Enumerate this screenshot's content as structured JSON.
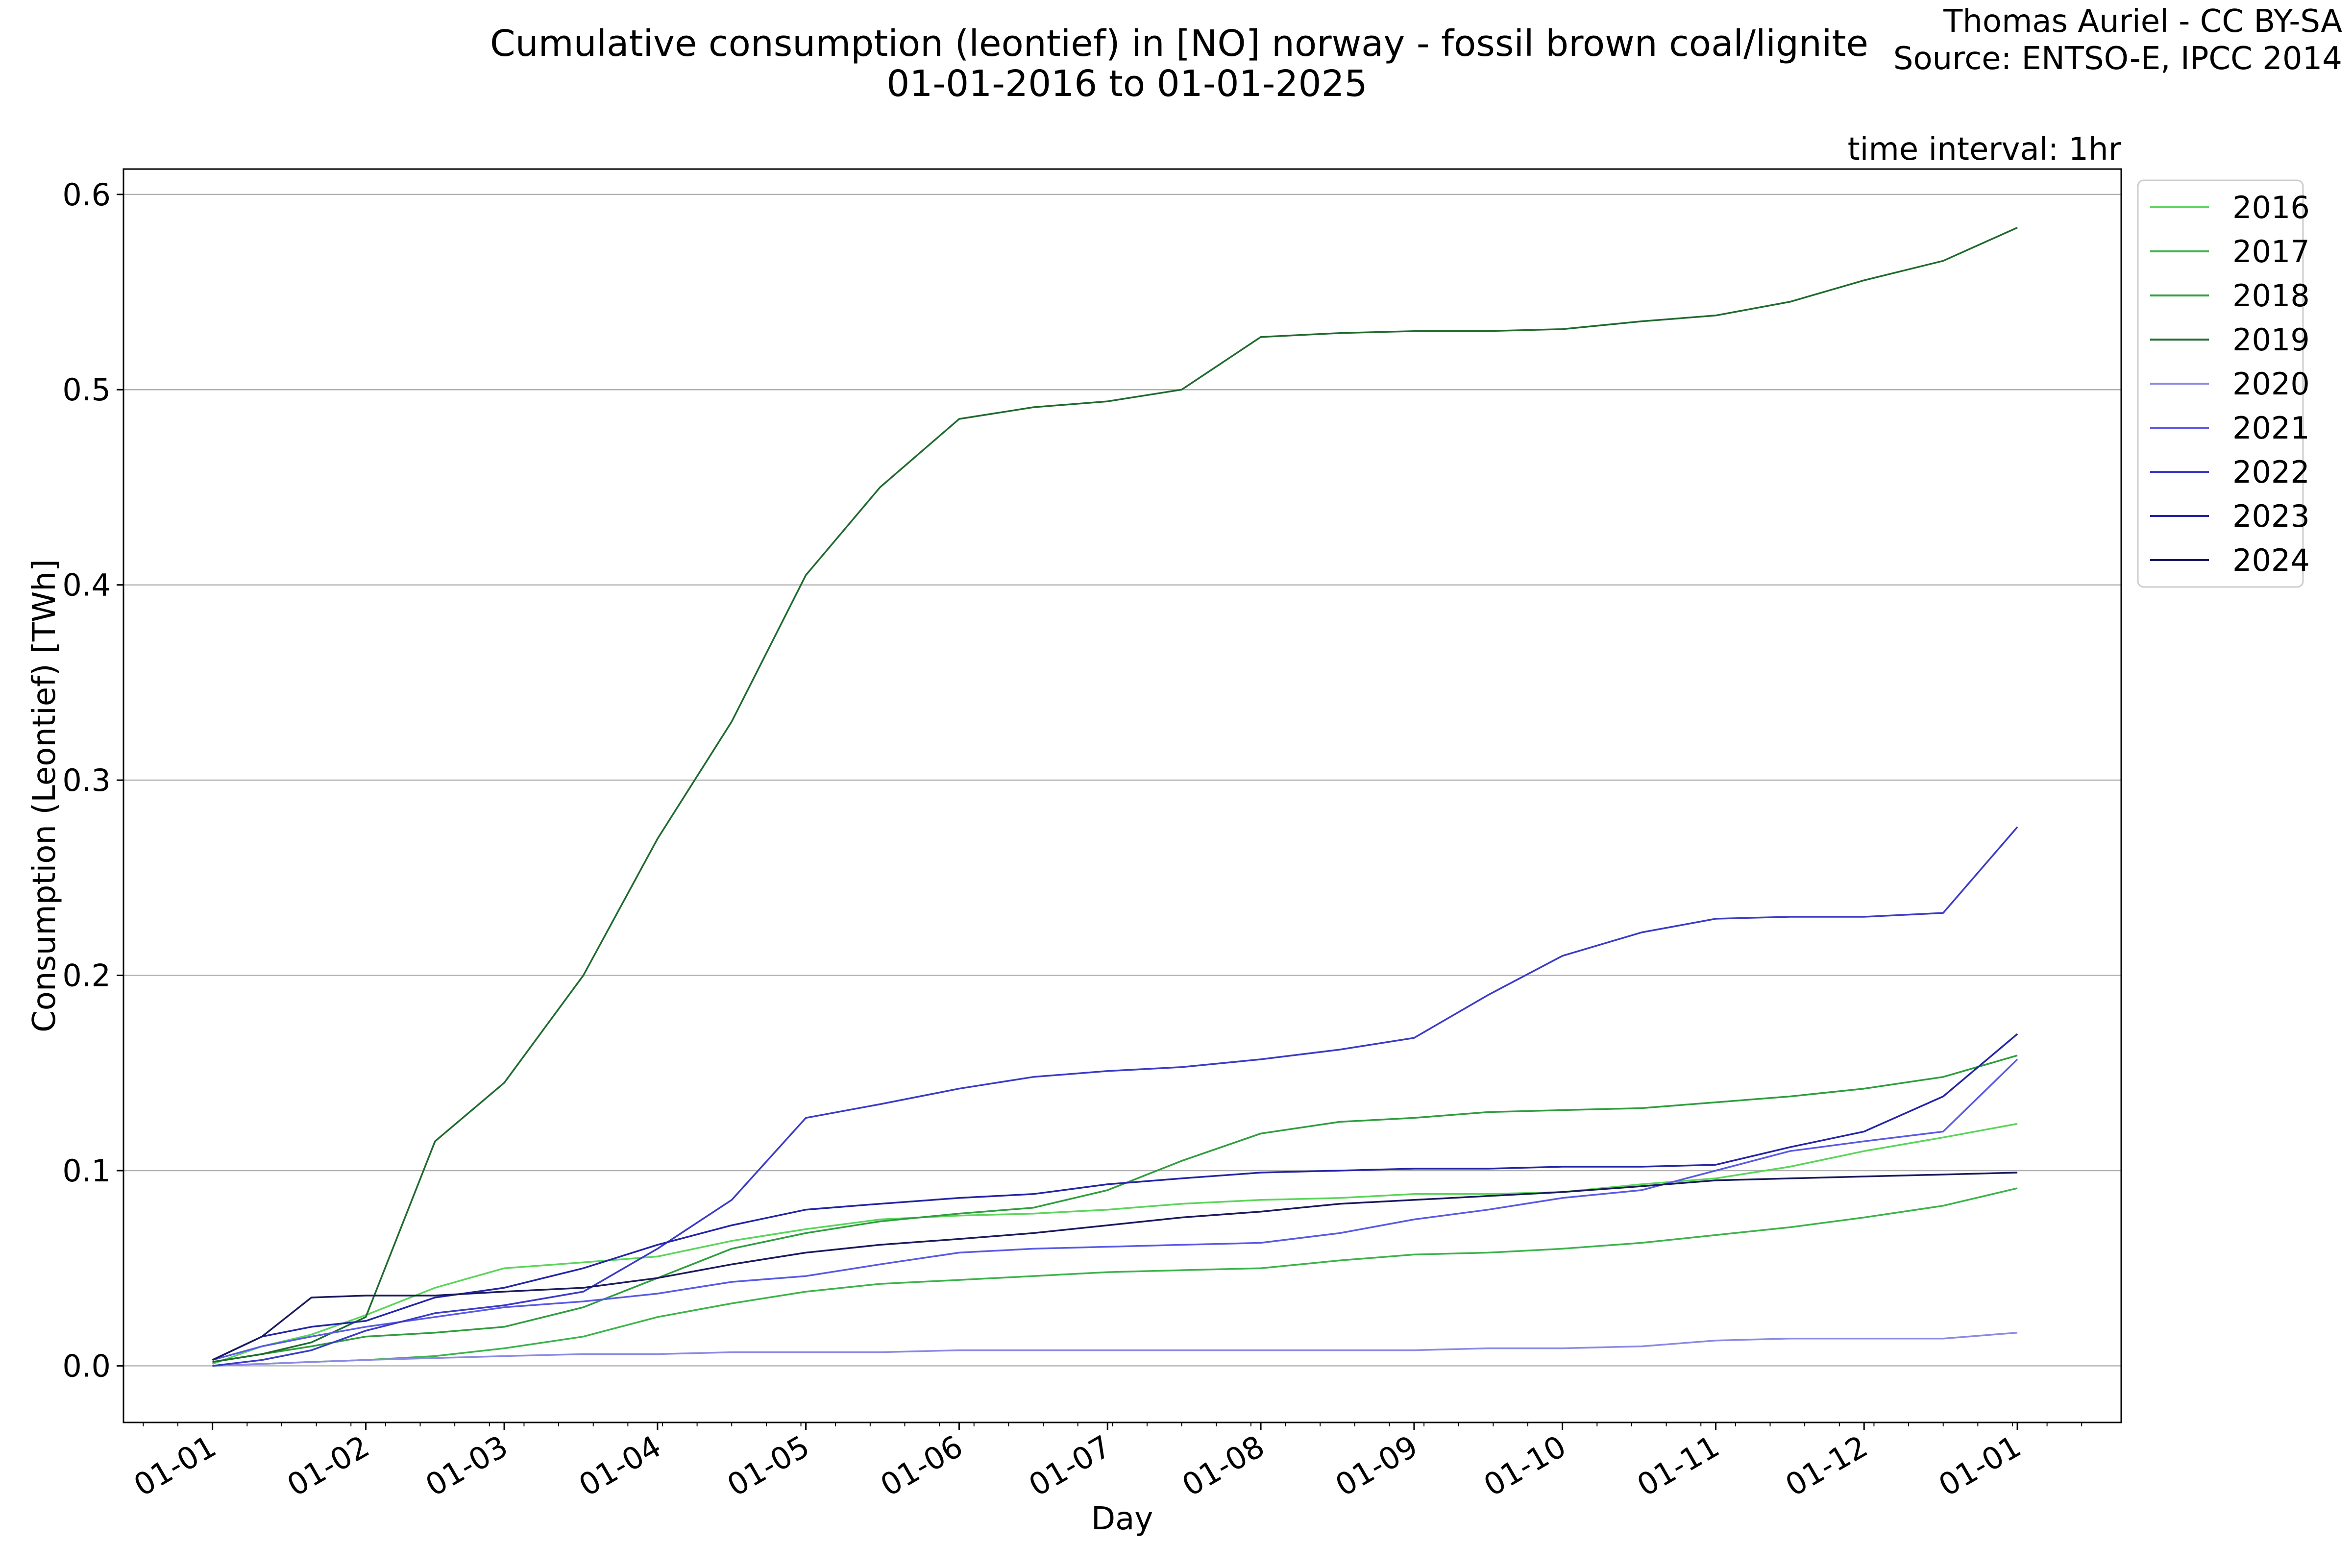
{
  "chart_data": {
    "type": "line",
    "title": "Cumulative consumption (leontief) in [NO] norway - fossil brown coal/lignite",
    "subtitle": "01-01-2016 to 01-01-2025",
    "credit": [
      "Thomas Auriel - CC BY-SA",
      "Source: ENTSO-E, IPCC 2014"
    ],
    "annotation": "time interval: 1hr",
    "xlabel": "Day",
    "ylabel": "Consumption (Leontief) [TWh]",
    "x_ticks": [
      "01-01",
      "01-02",
      "01-03",
      "01-04",
      "01-05",
      "01-06",
      "01-07",
      "01-08",
      "01-09",
      "01-10",
      "01-11",
      "01-12",
      "01-01"
    ],
    "x_tick_days": [
      0,
      31,
      59,
      90,
      120,
      151,
      181,
      212,
      243,
      273,
      304,
      334,
      365
    ],
    "y_ticks": [
      0.0,
      0.1,
      0.2,
      0.3,
      0.4,
      0.5,
      0.6
    ],
    "y_tick_labels": [
      "0.0",
      "0.1",
      "0.2",
      "0.3",
      "0.4",
      "0.5",
      "0.6"
    ],
    "xlim": [
      -18,
      386
    ],
    "ylim": [
      -0.029,
      0.613
    ],
    "grid": "horizontal",
    "legend_position": "outside-top-right",
    "x": [
      0,
      10,
      20,
      31,
      45,
      59,
      75,
      90,
      105,
      120,
      135,
      151,
      166,
      181,
      196,
      212,
      228,
      243,
      258,
      273,
      289,
      304,
      319,
      334,
      350,
      365
    ],
    "series": [
      {
        "name": "2016",
        "color": "#5ad65a",
        "values": [
          0.001,
          0.01,
          0.016,
          0.026,
          0.04,
          0.05,
          0.053,
          0.056,
          0.064,
          0.07,
          0.075,
          0.077,
          0.078,
          0.08,
          0.083,
          0.085,
          0.086,
          0.088,
          0.088,
          0.089,
          0.093,
          0.096,
          0.102,
          0.11,
          0.117,
          0.124
        ]
      },
      {
        "name": "2017",
        "color": "#3cb44b",
        "values": [
          0.0,
          0.001,
          0.002,
          0.003,
          0.005,
          0.009,
          0.015,
          0.025,
          0.032,
          0.038,
          0.042,
          0.044,
          0.046,
          0.048,
          0.049,
          0.05,
          0.054,
          0.057,
          0.058,
          0.06,
          0.063,
          0.067,
          0.071,
          0.076,
          0.082,
          0.091
        ]
      },
      {
        "name": "2018",
        "color": "#2e9e3e",
        "values": [
          0.002,
          0.006,
          0.01,
          0.015,
          0.017,
          0.02,
          0.03,
          0.045,
          0.06,
          0.068,
          0.074,
          0.078,
          0.081,
          0.09,
          0.105,
          0.119,
          0.125,
          0.127,
          0.13,
          0.131,
          0.132,
          0.135,
          0.138,
          0.142,
          0.148,
          0.159
        ]
      },
      {
        "name": "2019",
        "color": "#1f6b2e",
        "values": [
          0.002,
          0.006,
          0.012,
          0.025,
          0.115,
          0.145,
          0.2,
          0.27,
          0.33,
          0.405,
          0.45,
          0.485,
          0.491,
          0.494,
          0.5,
          0.527,
          0.529,
          0.53,
          0.53,
          0.531,
          0.535,
          0.538,
          0.545,
          0.556,
          0.566,
          0.583
        ]
      },
      {
        "name": "2020",
        "color": "#8a8ae6",
        "values": [
          0.0,
          0.001,
          0.002,
          0.003,
          0.004,
          0.005,
          0.006,
          0.006,
          0.007,
          0.007,
          0.007,
          0.008,
          0.008,
          0.008,
          0.008,
          0.008,
          0.008,
          0.008,
          0.009,
          0.009,
          0.01,
          0.013,
          0.014,
          0.014,
          0.014,
          0.017
        ]
      },
      {
        "name": "2021",
        "color": "#5a5ae6",
        "values": [
          0.003,
          0.01,
          0.015,
          0.02,
          0.025,
          0.03,
          0.033,
          0.037,
          0.043,
          0.046,
          0.052,
          0.058,
          0.06,
          0.061,
          0.062,
          0.063,
          0.068,
          0.075,
          0.08,
          0.086,
          0.09,
          0.1,
          0.11,
          0.115,
          0.12,
          0.157
        ]
      },
      {
        "name": "2022",
        "color": "#3b3bc8",
        "values": [
          0.0,
          0.003,
          0.008,
          0.018,
          0.027,
          0.031,
          0.038,
          0.06,
          0.085,
          0.127,
          0.134,
          0.142,
          0.148,
          0.151,
          0.153,
          0.157,
          0.162,
          0.168,
          0.19,
          0.21,
          0.222,
          0.229,
          0.23,
          0.23,
          0.232,
          0.276
        ]
      },
      {
        "name": "2023",
        "color": "#2424a8",
        "values": [
          0.003,
          0.015,
          0.02,
          0.023,
          0.035,
          0.04,
          0.05,
          0.062,
          0.072,
          0.08,
          0.083,
          0.086,
          0.088,
          0.093,
          0.096,
          0.099,
          0.1,
          0.101,
          0.101,
          0.102,
          0.102,
          0.103,
          0.112,
          0.12,
          0.138,
          0.17
        ]
      },
      {
        "name": "2024",
        "color": "#1a1a5e",
        "values": [
          0.003,
          0.015,
          0.035,
          0.036,
          0.036,
          0.038,
          0.04,
          0.045,
          0.052,
          0.058,
          0.062,
          0.065,
          0.068,
          0.072,
          0.076,
          0.079,
          0.083,
          0.085,
          0.087,
          0.089,
          0.092,
          0.095,
          0.096,
          0.097,
          0.098,
          0.099
        ]
      }
    ]
  }
}
